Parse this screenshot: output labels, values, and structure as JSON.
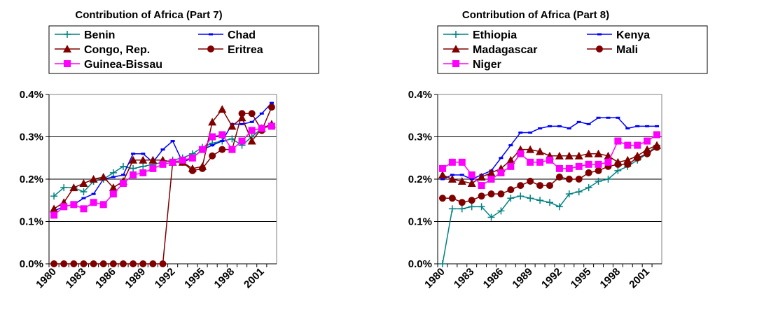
{
  "chart_data": [
    {
      "type": "line",
      "title": "Contribution of Africa (Part 7)",
      "categories": [
        "1980",
        null,
        null,
        "1983",
        null,
        null,
        "1986",
        null,
        null,
        "1989",
        null,
        null,
        "1992",
        null,
        null,
        "1995",
        null,
        null,
        "1998",
        null,
        null,
        "2001",
        null
      ],
      "ylim": [
        0,
        0.4
      ],
      "yticks": [
        {
          "value": 0,
          "label": "0.0%"
        },
        {
          "value": 0.1,
          "label": "0.1%"
        },
        {
          "value": 0.2,
          "label": "0.2%"
        },
        {
          "value": 0.3,
          "label": "0.3%"
        },
        {
          "value": 0.4,
          "label": "0.4%"
        }
      ],
      "grid": true,
      "series": [
        {
          "name": "Benin",
          "color": "#008080",
          "marker": "plus",
          "values": [
            0.16,
            0.18,
            0.18,
            0.17,
            0.195,
            0.2,
            0.215,
            0.23,
            0.225,
            0.23,
            0.235,
            0.24,
            0.245,
            0.25,
            0.26,
            0.275,
            0.285,
            0.29,
            0.295,
            0.28,
            0.3,
            0.32,
            0.33
          ]
        },
        {
          "name": "Chad",
          "color": "#0000ff",
          "marker": "dash",
          "values": [
            0.125,
            0.135,
            0.14,
            0.155,
            0.165,
            0.2,
            0.205,
            0.21,
            0.26,
            0.26,
            0.24,
            0.27,
            0.29,
            0.24,
            0.25,
            0.27,
            0.28,
            0.29,
            0.33,
            0.33,
            0.335,
            0.355,
            0.38
          ]
        },
        {
          "name": "Congo, Rep.",
          "color": "#800000",
          "marker": "triangle",
          "values": [
            0.13,
            0.145,
            0.18,
            0.19,
            0.2,
            0.205,
            0.18,
            0.195,
            0.245,
            0.245,
            0.245,
            0.245,
            0.24,
            0.24,
            0.225,
            0.23,
            0.335,
            0.365,
            0.325,
            0.345,
            0.29,
            0.32,
            0.33
          ]
        },
        {
          "name": "Eritrea",
          "color": "#800000",
          "marker": "circle",
          "values": [
            0,
            0,
            0,
            0,
            0,
            0,
            0,
            0,
            0,
            0,
            0,
            0,
            0.24,
            0.24,
            0.22,
            0.225,
            0.255,
            0.27,
            0.27,
            0.355,
            0.355,
            0.315,
            0.37
          ]
        },
        {
          "name": "Guinea-Bissau",
          "color": "#ff00ff",
          "marker": "square",
          "values": [
            0.115,
            0.135,
            0.14,
            0.13,
            0.145,
            0.14,
            0.165,
            0.19,
            0.21,
            0.215,
            0.225,
            0.235,
            0.24,
            0.245,
            0.25,
            0.27,
            0.3,
            0.305,
            0.27,
            0.29,
            0.315,
            0.32,
            0.325
          ]
        }
      ]
    },
    {
      "type": "line",
      "title": "Contribution of Africa (Part 8)",
      "categories": [
        "1980",
        null,
        null,
        "1983",
        null,
        null,
        "1986",
        null,
        null,
        "1989",
        null,
        null,
        "1992",
        null,
        null,
        "1995",
        null,
        null,
        "1998",
        null,
        null,
        "2001",
        null
      ],
      "ylim": [
        0,
        0.4
      ],
      "yticks": [
        {
          "value": 0,
          "label": "0.0%"
        },
        {
          "value": 0.1,
          "label": "0.1%"
        },
        {
          "value": 0.2,
          "label": "0.2%"
        },
        {
          "value": 0.3,
          "label": "0.3%"
        },
        {
          "value": 0.4,
          "label": "0.4%"
        }
      ],
      "grid": true,
      "series": [
        {
          "name": "Ethiopia",
          "color": "#008080",
          "marker": "plus",
          "values": [
            0,
            0.13,
            0.13,
            0.135,
            0.135,
            0.11,
            0.125,
            0.155,
            0.16,
            0.155,
            0.15,
            0.145,
            0.135,
            0.165,
            0.17,
            0.18,
            0.195,
            0.2,
            0.22,
            0.23,
            0.245,
            0.26,
            0.28
          ]
        },
        {
          "name": "Kenya",
          "color": "#0000ff",
          "marker": "dash",
          "values": [
            0.2,
            0.21,
            0.21,
            0.2,
            0.21,
            0.22,
            0.25,
            0.28,
            0.31,
            0.31,
            0.32,
            0.325,
            0.325,
            0.32,
            0.335,
            0.33,
            0.345,
            0.345,
            0.345,
            0.32,
            0.325,
            0.325,
            0.325
          ]
        },
        {
          "name": "Madagascar",
          "color": "#800000",
          "marker": "triangle",
          "values": [
            0.21,
            0.2,
            0.195,
            0.19,
            0.205,
            0.215,
            0.225,
            0.245,
            0.27,
            0.27,
            0.265,
            0.255,
            0.255,
            0.255,
            0.255,
            0.26,
            0.26,
            0.255,
            0.24,
            0.245,
            0.255,
            0.27,
            0.28
          ]
        },
        {
          "name": "Mali",
          "color": "#800000",
          "marker": "circle",
          "values": [
            0.155,
            0.155,
            0.145,
            0.15,
            0.16,
            0.165,
            0.165,
            0.175,
            0.185,
            0.195,
            0.185,
            0.185,
            0.205,
            0.2,
            0.2,
            0.215,
            0.22,
            0.23,
            0.235,
            0.235,
            0.25,
            0.26,
            0.275
          ]
        },
        {
          "name": "Niger",
          "color": "#ff00ff",
          "marker": "square",
          "values": [
            0.225,
            0.24,
            0.24,
            0.21,
            0.185,
            0.2,
            0.215,
            0.23,
            0.26,
            0.24,
            0.24,
            0.245,
            0.225,
            0.225,
            0.23,
            0.235,
            0.235,
            0.24,
            0.29,
            0.28,
            0.28,
            0.29,
            0.305
          ]
        }
      ]
    }
  ]
}
